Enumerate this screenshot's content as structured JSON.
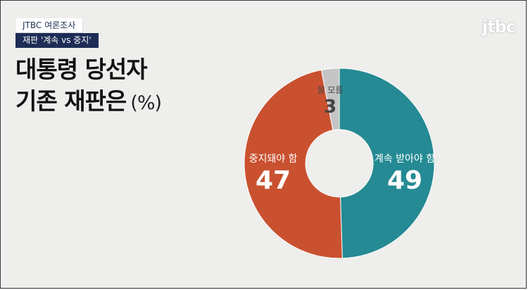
{
  "header": {
    "source_tag": "JTBC 여론조사",
    "topic_tag": "재판 '계속 vs 중지'",
    "title_line1": "대통령 당선자",
    "title_line2": "기존 재판은",
    "unit": "(%)"
  },
  "brand": {
    "logo_text": "jtbc"
  },
  "chart_data": {
    "type": "pie",
    "variant": "donut",
    "title": "대통령 당선자 기존 재판은",
    "unit": "(%)",
    "slices": [
      {
        "label": "계속 받아야 함",
        "value": 49,
        "color": "#258a93"
      },
      {
        "label": "중지돼야 함",
        "value": 47,
        "color": "#c9512f"
      },
      {
        "label": "잘 모름",
        "value": 3,
        "color": "#c4c4c4"
      }
    ]
  }
}
